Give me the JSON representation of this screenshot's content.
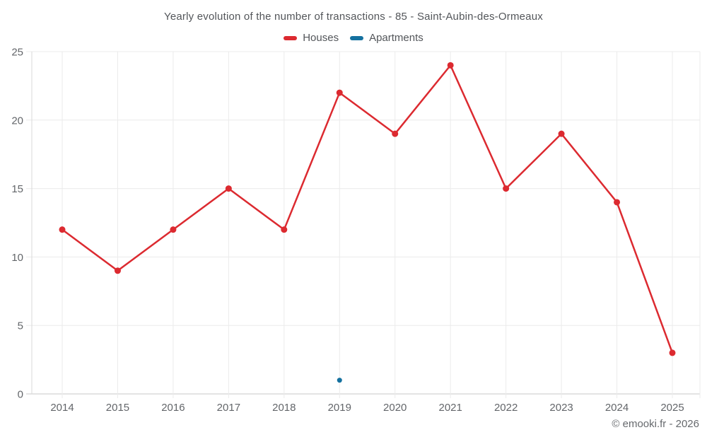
{
  "header": {
    "title": "Yearly evolution of the number of transactions - 85 - Saint-Aubin-des-Ormeaux"
  },
  "legend": {
    "items": [
      {
        "label": "Houses",
        "color": "#dc2a30"
      },
      {
        "label": "Apartments",
        "color": "#15719f"
      }
    ]
  },
  "footer": {
    "credit": "© emooki.fr - 2026"
  },
  "colors": {
    "background": "#ffffff",
    "gridline": "#ebebeb",
    "axis_line": "#c9c9c9",
    "y_axis_line": "#d9d9d9",
    "tick_label": "#63666a",
    "houses": "#dc2a30",
    "apartments": "#15719f"
  },
  "chart_data": {
    "type": "line",
    "title": "Yearly evolution of the number of transactions - 85 - Saint-Aubin-des-Ormeaux",
    "categories": [
      "2014",
      "2015",
      "2016",
      "2017",
      "2018",
      "2019",
      "2020",
      "2021",
      "2022",
      "2023",
      "2024",
      "2025"
    ],
    "series": [
      {
        "name": "Houses",
        "color": "#dc2a30",
        "marker_radius": 4.5,
        "line_width": 2.5,
        "values": [
          12,
          9,
          12,
          15,
          12,
          22,
          19,
          24,
          15,
          19,
          14,
          3
        ]
      },
      {
        "name": "Apartments",
        "color": "#15719f",
        "marker_radius": 3.5,
        "line_width": 2.5,
        "values": [
          null,
          null,
          null,
          null,
          null,
          1,
          null,
          null,
          null,
          null,
          null,
          null
        ]
      }
    ],
    "xlabel": "",
    "ylabel": "",
    "ylim": [
      0,
      25
    ],
    "yticks": [
      0,
      5,
      10,
      15,
      20,
      25
    ],
    "grid": true,
    "legend_position": "top"
  }
}
